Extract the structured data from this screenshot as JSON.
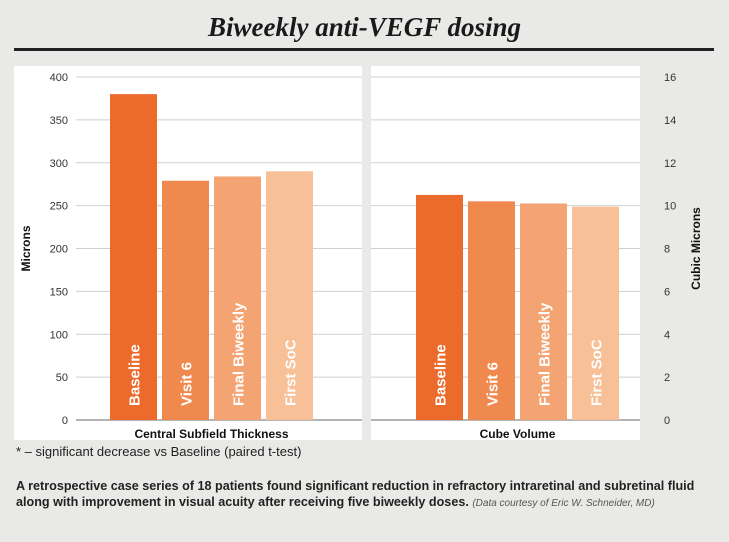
{
  "title": "Biweekly anti-VEGF dosing",
  "footnote": "* – significant decrease vs Baseline (paired t-test)",
  "caption": {
    "text": "A retrospective case series of 18 patients found significant reduction in refractory intraretinal and subretinal fluid along with improvement in visual acuity after receiving five biweekly doses.",
    "credit": "(Data courtesy of Eric W. Schneider, MD)"
  },
  "chart_data": [
    {
      "type": "bar",
      "xlabel": "Central Subfield Thickness",
      "ylabel": "Microns",
      "ylim": [
        0,
        400
      ],
      "yticks": [
        "0",
        "50",
        "100",
        "150",
        "200",
        "250",
        "300",
        "350",
        "400"
      ],
      "categories": [
        "Baseline",
        "Visit 6",
        "Final Biweekly",
        "First SoC"
      ],
      "values": [
        380,
        279,
        284,
        290
      ],
      "colors": [
        "#ec6a2c",
        "#f0894e",
        "#f3a472",
        "#f7c097"
      ],
      "grid": true
    },
    {
      "type": "bar",
      "xlabel": "Cube Volume",
      "ylabel": "Cubic Microns",
      "ylim": [
        0,
        16
      ],
      "yticks": [
        "0",
        "2",
        "4",
        "6",
        "8",
        "10",
        "12",
        "14",
        "16"
      ],
      "categories": [
        "Baseline",
        "Visit 6",
        "Final Biweekly",
        "First SoC"
      ],
      "values": [
        10.5,
        10.2,
        10.1,
        9.95
      ],
      "colors": [
        "#ec6a2c",
        "#f0894e",
        "#f3a472",
        "#f7c097"
      ],
      "grid": true
    }
  ]
}
